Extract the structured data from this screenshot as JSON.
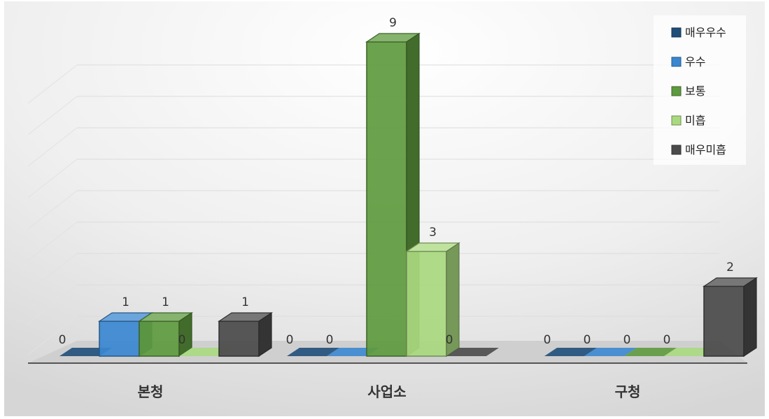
{
  "chart_data": {
    "type": "bar",
    "title": "",
    "xlabel": "",
    "ylabel": "",
    "categories": [
      "본청",
      "사업소",
      "구청"
    ],
    "series": [
      {
        "name": "매우우수",
        "values": [
          0,
          0,
          0
        ],
        "color": "#1F4E79"
      },
      {
        "name": "우수",
        "values": [
          1,
          0,
          0
        ],
        "color": "#3A87D0"
      },
      {
        "name": "보통",
        "values": [
          1,
          9,
          0
        ],
        "color": "#5E9A3E"
      },
      {
        "name": "미흡",
        "values": [
          0,
          3,
          0
        ],
        "color": "#A9D97F"
      },
      {
        "name": "매우미흡",
        "values": [
          1,
          0,
          2
        ],
        "color": "#4A4A4A"
      }
    ],
    "ylim": [
      0,
      9
    ],
    "grid": true,
    "legend": "top-right"
  }
}
